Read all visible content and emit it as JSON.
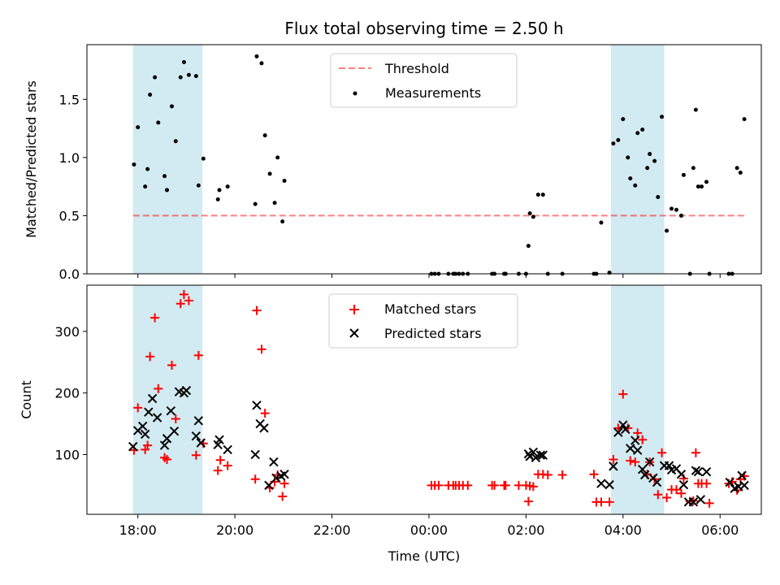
{
  "chart_data": {
    "title": "Flux total observing time = 2.50 h",
    "xlabel": "Time (UTC)",
    "x_ticks": [
      "18:00",
      "20:00",
      "22:00",
      "00:00",
      "02:00",
      "04:00",
      "06:00"
    ],
    "x_tick_hours": [
      18,
      20,
      22,
      24,
      26,
      28,
      30
    ],
    "xlim_hours": [
      16.95,
      30.85
    ],
    "highlight_spans_hours": [
      [
        17.9,
        19.33
      ],
      [
        27.75,
        28.85
      ]
    ],
    "colors": {
      "highlight": "#add8e6",
      "threshold": "#ff0000",
      "measurements": "#000000",
      "matched": "#ff0000",
      "predicted": "#000000"
    },
    "panels": [
      {
        "type": "scatter",
        "ylabel": "Matched/Predicted stars",
        "ylim": [
          0,
          1.97
        ],
        "y_ticks": [
          0.0,
          0.5,
          1.0,
          1.5
        ],
        "y_tick_labels": [
          "0.0",
          "0.5",
          "1.0",
          "1.5"
        ],
        "legend": {
          "position": "upper center",
          "entries": [
            "Threshold",
            "Measurements"
          ]
        },
        "threshold": {
          "name": "Threshold",
          "y": 0.5,
          "x_range": [
            17.9,
            30.5
          ]
        },
        "series": [
          {
            "name": "Measurements",
            "points": [
              [
                17.92,
                0.94
              ],
              [
                18.0,
                1.26
              ],
              [
                18.15,
                0.75
              ],
              [
                18.2,
                0.9
              ],
              [
                18.25,
                1.54
              ],
              [
                18.35,
                1.69
              ],
              [
                18.42,
                1.3
              ],
              [
                18.55,
                0.84
              ],
              [
                18.6,
                0.72
              ],
              [
                18.7,
                1.44
              ],
              [
                18.78,
                1.14
              ],
              [
                18.88,
                1.69
              ],
              [
                18.95,
                1.82
              ],
              [
                19.05,
                1.71
              ],
              [
                19.2,
                1.7
              ],
              [
                19.25,
                0.76
              ],
              [
                19.35,
                0.99
              ],
              [
                19.65,
                0.64
              ],
              [
                19.68,
                0.72
              ],
              [
                19.85,
                0.75
              ],
              [
                20.42,
                0.6
              ],
              [
                20.45,
                1.87
              ],
              [
                20.55,
                1.81
              ],
              [
                20.62,
                1.19
              ],
              [
                20.72,
                0.86
              ],
              [
                20.82,
                0.61
              ],
              [
                20.88,
                1.0
              ],
              [
                20.98,
                0.45
              ],
              [
                21.02,
                0.8
              ],
              [
                24.05,
                0
              ],
              [
                24.12,
                0
              ],
              [
                24.2,
                0
              ],
              [
                24.4,
                0
              ],
              [
                24.5,
                0
              ],
              [
                24.55,
                0
              ],
              [
                24.62,
                0
              ],
              [
                24.7,
                0
              ],
              [
                24.8,
                0
              ],
              [
                25.3,
                0
              ],
              [
                25.35,
                0
              ],
              [
                25.55,
                0
              ],
              [
                25.58,
                0
              ],
              [
                25.85,
                0
              ],
              [
                26.0,
                0
              ],
              [
                26.05,
                0.24
              ],
              [
                26.08,
                0.52
              ],
              [
                26.15,
                0.49
              ],
              [
                26.25,
                0.68
              ],
              [
                26.35,
                0.68
              ],
              [
                26.45,
                0
              ],
              [
                26.75,
                0
              ],
              [
                27.4,
                0
              ],
              [
                27.45,
                0
              ],
              [
                27.55,
                0.44
              ],
              [
                27.72,
                0.01
              ],
              [
                27.8,
                1.12
              ],
              [
                27.9,
                1.15
              ],
              [
                28.0,
                1.33
              ],
              [
                28.1,
                1.0
              ],
              [
                28.15,
                0.82
              ],
              [
                28.25,
                0.76
              ],
              [
                28.3,
                1.21
              ],
              [
                28.4,
                1.24
              ],
              [
                28.5,
                0.91
              ],
              [
                28.55,
                1.03
              ],
              [
                28.65,
                0.97
              ],
              [
                28.72,
                0.66
              ],
              [
                28.8,
                1.35
              ],
              [
                28.9,
                0.37
              ],
              [
                29.0,
                0.56
              ],
              [
                29.1,
                0.55
              ],
              [
                29.2,
                0.5
              ],
              [
                29.25,
                0.85
              ],
              [
                29.38,
                0
              ],
              [
                29.45,
                0.91
              ],
              [
                29.5,
                1.41
              ],
              [
                29.55,
                0.75
              ],
              [
                29.62,
                0.75
              ],
              [
                29.72,
                0.79
              ],
              [
                29.78,
                0
              ],
              [
                30.18,
                0
              ],
              [
                30.25,
                0
              ],
              [
                30.35,
                0.91
              ],
              [
                30.42,
                0.87
              ],
              [
                30.5,
                1.33
              ]
            ]
          }
        ]
      },
      {
        "type": "scatter",
        "ylabel": "Count",
        "ylim": [
          3,
          375
        ],
        "y_ticks": [
          100,
          200,
          300
        ],
        "y_tick_labels": [
          "100",
          "200",
          "300"
        ],
        "legend": {
          "position": "upper center",
          "entries": [
            "Matched stars",
            "Predicted stars"
          ]
        },
        "series": [
          {
            "name": "Matched stars",
            "marker": "plus",
            "points": [
              [
                17.92,
                107
              ],
              [
                18.0,
                176
              ],
              [
                18.15,
                108
              ],
              [
                18.2,
                115
              ],
              [
                18.25,
                259
              ],
              [
                18.35,
                322
              ],
              [
                18.42,
                207
              ],
              [
                18.55,
                95
              ],
              [
                18.6,
                92
              ],
              [
                18.7,
                245
              ],
              [
                18.78,
                158
              ],
              [
                18.88,
                345
              ],
              [
                18.95,
                360
              ],
              [
                19.05,
                350
              ],
              [
                19.2,
                99
              ],
              [
                19.25,
                261
              ],
              [
                19.35,
                118
              ],
              [
                19.65,
                74
              ],
              [
                19.7,
                91
              ],
              [
                19.85,
                82
              ],
              [
                20.42,
                60
              ],
              [
                20.45,
                334
              ],
              [
                20.55,
                271
              ],
              [
                20.62,
                167
              ],
              [
                20.72,
                46
              ],
              [
                20.82,
                56
              ],
              [
                20.88,
                67
              ],
              [
                20.98,
                32
              ],
              [
                21.02,
                53
              ],
              [
                24.05,
                50
              ],
              [
                24.12,
                50
              ],
              [
                24.2,
                50
              ],
              [
                24.4,
                50
              ],
              [
                24.5,
                50
              ],
              [
                24.55,
                50
              ],
              [
                24.62,
                50
              ],
              [
                24.7,
                50
              ],
              [
                24.8,
                50
              ],
              [
                25.3,
                50
              ],
              [
                25.35,
                50
              ],
              [
                25.55,
                50
              ],
              [
                25.58,
                50
              ],
              [
                25.85,
                50
              ],
              [
                26.0,
                50
              ],
              [
                26.05,
                24
              ],
              [
                26.08,
                49
              ],
              [
                26.15,
                48
              ],
              [
                26.25,
                68
              ],
              [
                26.35,
                68
              ],
              [
                26.45,
                67
              ],
              [
                26.75,
                67
              ],
              [
                27.4,
                68
              ],
              [
                27.45,
                23
              ],
              [
                27.55,
                23
              ],
              [
                27.72,
                23
              ],
              [
                27.8,
                92
              ],
              [
                27.9,
                143
              ],
              [
                28.0,
                198
              ],
              [
                28.1,
                143
              ],
              [
                28.15,
                90
              ],
              [
                28.25,
                88
              ],
              [
                28.3,
                135
              ],
              [
                28.4,
                124
              ],
              [
                28.5,
                68
              ],
              [
                28.55,
                88
              ],
              [
                28.65,
                60
              ],
              [
                28.72,
                35
              ],
              [
                28.8,
                103
              ],
              [
                28.9,
                30
              ],
              [
                29.0,
                43
              ],
              [
                29.1,
                43
              ],
              [
                29.2,
                37
              ],
              [
                29.25,
                61
              ],
              [
                29.38,
                24
              ],
              [
                29.45,
                25
              ],
              [
                29.5,
                103
              ],
              [
                29.55,
                53
              ],
              [
                29.62,
                53
              ],
              [
                29.72,
                53
              ],
              [
                29.78,
                21
              ],
              [
                30.18,
                53
              ],
              [
                30.25,
                56
              ],
              [
                30.35,
                42
              ],
              [
                30.42,
                60
              ],
              [
                30.5,
                65
              ]
            ]
          },
          {
            "name": "Predicted stars",
            "marker": "x",
            "points": [
              [
                17.9,
                113
              ],
              [
                18.0,
                139
              ],
              [
                18.1,
                146
              ],
              [
                18.15,
                133
              ],
              [
                18.22,
                169
              ],
              [
                18.3,
                191
              ],
              [
                18.4,
                160
              ],
              [
                18.55,
                115
              ],
              [
                18.6,
                126
              ],
              [
                18.68,
                171
              ],
              [
                18.75,
                138
              ],
              [
                18.85,
                202
              ],
              [
                18.95,
                200
              ],
              [
                19.0,
                204
              ],
              [
                19.2,
                130
              ],
              [
                19.25,
                155
              ],
              [
                19.3,
                119
              ],
              [
                19.65,
                116
              ],
              [
                19.68,
                124
              ],
              [
                19.85,
                108
              ],
              [
                20.42,
                100
              ],
              [
                20.45,
                180
              ],
              [
                20.52,
                150
              ],
              [
                20.6,
                143
              ],
              [
                20.7,
                50
              ],
              [
                20.8,
                88
              ],
              [
                20.85,
                62
              ],
              [
                20.95,
                65
              ],
              [
                21.02,
                68
              ],
              [
                26.05,
                101
              ],
              [
                26.08,
                97
              ],
              [
                26.15,
                104
              ],
              [
                26.2,
                95
              ],
              [
                26.3,
                99
              ],
              [
                26.35,
                99
              ],
              [
                27.55,
                53
              ],
              [
                27.72,
                51
              ],
              [
                27.8,
                81
              ],
              [
                27.9,
                136
              ],
              [
                28.0,
                148
              ],
              [
                28.05,
                141
              ],
              [
                28.15,
                110
              ],
              [
                28.25,
                123
              ],
              [
                28.3,
                107
              ],
              [
                28.4,
                76
              ],
              [
                28.45,
                67
              ],
              [
                28.55,
                88
              ],
              [
                28.62,
                62
              ],
              [
                28.7,
                55
              ],
              [
                28.85,
                82
              ],
              [
                28.95,
                82
              ],
              [
                29.0,
                75
              ],
              [
                29.1,
                77
              ],
              [
                29.2,
                68
              ],
              [
                29.25,
                51
              ],
              [
                29.35,
                23
              ],
              [
                29.45,
                23
              ],
              [
                29.5,
                74
              ],
              [
                29.55,
                72
              ],
              [
                29.6,
                27
              ],
              [
                29.72,
                72
              ],
              [
                30.2,
                55
              ],
              [
                30.3,
                45
              ],
              [
                30.38,
                48
              ],
              [
                30.45,
                66
              ],
              [
                30.5,
                50
              ]
            ]
          }
        ]
      }
    ]
  }
}
